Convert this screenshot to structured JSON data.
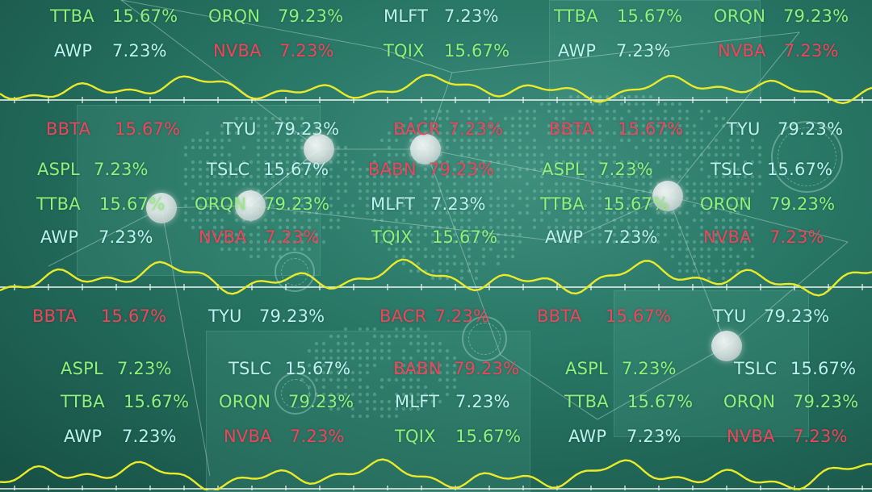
{
  "colors": {
    "up": "#8ff07a",
    "neutral": "#b9f2ee",
    "down": "#f0445a",
    "wave": "#e9ea2a",
    "axis": "#f2f5f2"
  },
  "decor": [
    "world-map-dots",
    "network-lines",
    "hud-rings"
  ],
  "rows": [
    {
      "id": "row-1",
      "tickers": [
        {
          "sym": "TTBA",
          "val": "15.67%",
          "tone": "up"
        },
        {
          "sym": "ORQN",
          "val": "79.23%",
          "tone": "up"
        },
        {
          "sym": "MLFT",
          "val": "7.23%",
          "tone": "neutral"
        },
        {
          "sym": "TTBA",
          "val": "15.67%",
          "tone": "up"
        },
        {
          "sym": "ORQN",
          "val": "79.23%",
          "tone": "up"
        }
      ]
    },
    {
      "id": "row-2",
      "tickers": [
        {
          "sym": "AWP",
          "val": "7.23%",
          "tone": "neutral"
        },
        {
          "sym": "NVBA",
          "val": "7.23%",
          "tone": "down"
        },
        {
          "sym": "TQIX",
          "val": "15.67%",
          "tone": "up"
        },
        {
          "sym": "AWP",
          "val": "7.23%",
          "tone": "neutral"
        },
        {
          "sym": "NVBA",
          "val": "7.23%",
          "tone": "down"
        }
      ]
    },
    {
      "id": "row-3",
      "tickers": [
        {
          "sym": "BBTA",
          "val": "15.67%",
          "tone": "down"
        },
        {
          "sym": "TYU",
          "val": "79.23%",
          "tone": "neutral"
        },
        {
          "sym": "BACR",
          "val": "7.23%",
          "tone": "down"
        },
        {
          "sym": "BBTA",
          "val": "15.67%",
          "tone": "down"
        },
        {
          "sym": "TYU",
          "val": "79.23%",
          "tone": "neutral"
        }
      ]
    },
    {
      "id": "row-4",
      "tickers": [
        {
          "sym": "ASPL",
          "val": "7.23%",
          "tone": "up"
        },
        {
          "sym": "TSLC",
          "val": "15.67%",
          "tone": "neutral"
        },
        {
          "sym": "BABN",
          "val": "79.23%",
          "tone": "down"
        },
        {
          "sym": "ASPL",
          "val": "7.23%",
          "tone": "up"
        },
        {
          "sym": "TSLC",
          "val": "15.67%",
          "tone": "neutral"
        }
      ]
    },
    {
      "id": "row-5",
      "tickers": [
        {
          "sym": "TTBA",
          "val": "15.67%",
          "tone": "up"
        },
        {
          "sym": "ORQN",
          "val": "79.23%",
          "tone": "up"
        },
        {
          "sym": "MLFT",
          "val": "7.23%",
          "tone": "neutral"
        },
        {
          "sym": "TTBA",
          "val": "15.67%",
          "tone": "up"
        },
        {
          "sym": "ORQN",
          "val": "79.23%",
          "tone": "up"
        }
      ]
    },
    {
      "id": "row-6",
      "tickers": [
        {
          "sym": "AWP",
          "val": "7.23%",
          "tone": "neutral"
        },
        {
          "sym": "NVBA",
          "val": "7.23%",
          "tone": "down"
        },
        {
          "sym": "TQIX",
          "val": "15.67%",
          "tone": "up"
        },
        {
          "sym": "AWP",
          "val": "7.23%",
          "tone": "neutral"
        },
        {
          "sym": "NVBA",
          "val": "7.23%",
          "tone": "down"
        }
      ]
    },
    {
      "id": "row-7",
      "tickers": [
        {
          "sym": "BBTA",
          "val": "15.67%",
          "tone": "down"
        },
        {
          "sym": "TYU",
          "val": "79.23%",
          "tone": "neutral"
        },
        {
          "sym": "BACR",
          "val": "7.23%",
          "tone": "down"
        },
        {
          "sym": "BBTA",
          "val": "15.67%",
          "tone": "down"
        },
        {
          "sym": "TYU",
          "val": "79.23%",
          "tone": "neutral"
        }
      ]
    },
    {
      "id": "row-8",
      "tickers": [
        {
          "sym": "ASPL",
          "val": "7.23%",
          "tone": "up"
        },
        {
          "sym": "TSLC",
          "val": "15.67%",
          "tone": "neutral"
        },
        {
          "sym": "BABN",
          "val": "79.23%",
          "tone": "down"
        },
        {
          "sym": "ASPL",
          "val": "7.23%",
          "tone": "up"
        },
        {
          "sym": "TSLC",
          "val": "15.67%",
          "tone": "neutral"
        }
      ]
    },
    {
      "id": "row-9",
      "tickers": [
        {
          "sym": "TTBA",
          "val": "15.67%",
          "tone": "up"
        },
        {
          "sym": "ORQN",
          "val": "79.23%",
          "tone": "up"
        },
        {
          "sym": "MLFT",
          "val": "7.23%",
          "tone": "neutral"
        },
        {
          "sym": "TTBA",
          "val": "15.67%",
          "tone": "up"
        },
        {
          "sym": "ORQN",
          "val": "79.23%",
          "tone": "up"
        }
      ]
    },
    {
      "id": "row-10",
      "tickers": [
        {
          "sym": "AWP",
          "val": "7.23%",
          "tone": "neutral"
        },
        {
          "sym": "NVBA",
          "val": "7.23%",
          "tone": "down"
        },
        {
          "sym": "TQIX",
          "val": "15.67%",
          "tone": "up"
        },
        {
          "sym": "AWP",
          "val": "7.23%",
          "tone": "neutral"
        },
        {
          "sym": "NVBA",
          "val": "7.23%",
          "tone": "down"
        }
      ]
    }
  ]
}
